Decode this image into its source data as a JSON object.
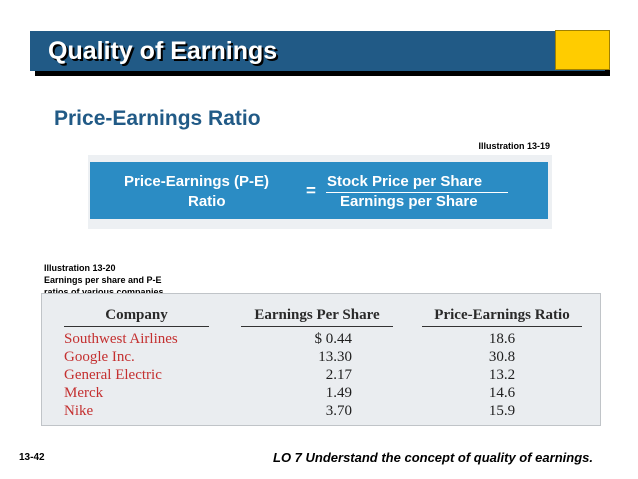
{
  "slide": {
    "title": "Quality of Earnings",
    "subtitle": "Price-Earnings Ratio",
    "slide_number": "13-42",
    "learning_objective": "LO 7  Understand the concept of quality of earnings."
  },
  "formula": {
    "illustration_label": "Illustration 13-19",
    "left_line1": "Price-Earnings (P-E)",
    "left_line2": "Ratio",
    "equals": "=",
    "numerator": "Stock Price per Share",
    "denominator": "Earnings per Share"
  },
  "table_caption": {
    "line1": "Illustration 13-20",
    "line2": "Earnings per share and P-E",
    "line3": "ratios of various companies"
  },
  "table": {
    "headers": {
      "company": "Company",
      "eps": "Earnings Per Share",
      "pe": "Price-Earnings Ratio"
    },
    "rows": [
      {
        "company": "Southwest Airlines",
        "eps": "$ 0.44",
        "pe": "18.6"
      },
      {
        "company": "Google Inc.",
        "eps": "13.30",
        "pe": "30.8"
      },
      {
        "company": "General Electric",
        "eps": "2.17",
        "pe": "13.2"
      },
      {
        "company": "Merck",
        "eps": "1.49",
        "pe": "14.6"
      },
      {
        "company": "Nike",
        "eps": "3.70",
        "pe": "15.9"
      }
    ]
  },
  "colors": {
    "title_bar": "#215a86",
    "accent": "#ffcc00",
    "formula_box": "#2b8cc4",
    "company_text": "#c43030"
  }
}
